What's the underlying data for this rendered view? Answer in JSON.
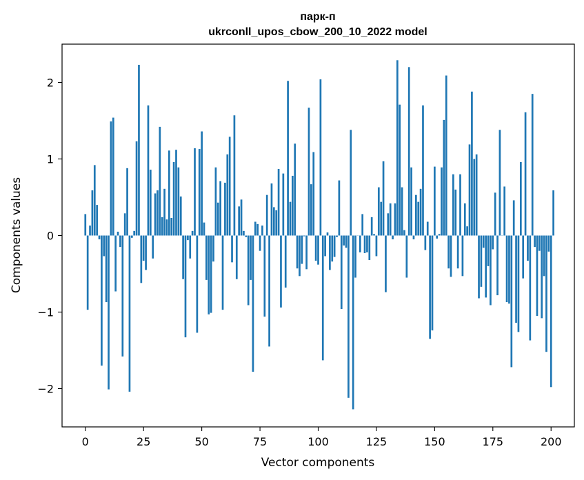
{
  "chart_data": {
    "type": "bar",
    "title": "парк-п",
    "subtitle": "ukrconll_upos_cbow_200_10_2022 model",
    "xlabel": "Vector components",
    "ylabel": "Components values",
    "xlim": [
      -10,
      210
    ],
    "ylim": [
      -2.5,
      2.5
    ],
    "xticks": [
      0,
      25,
      50,
      75,
      100,
      125,
      150,
      175,
      200
    ],
    "yticks": [
      -2,
      -1,
      0,
      1,
      2
    ],
    "ytick_labels": [
      "−2",
      "−1",
      "0",
      "1",
      "2"
    ],
    "grid": false,
    "bar_color": "#1f77b4",
    "values": [
      0.28,
      -0.97,
      0.13,
      0.59,
      0.92,
      0.4,
      -0.05,
      -1.7,
      -0.27,
      -0.87,
      -2.01,
      1.49,
      1.54,
      -0.73,
      0.05,
      -0.15,
      -1.58,
      0.29,
      0.88,
      -2.04,
      -0.03,
      0.06,
      1.23,
      2.23,
      -0.62,
      -0.33,
      -0.45,
      1.7,
      0.86,
      -0.3,
      0.55,
      0.59,
      1.42,
      0.24,
      0.61,
      0.21,
      1.11,
      0.23,
      0.96,
      1.12,
      0.89,
      0.51,
      -0.57,
      -1.33,
      -0.06,
      -0.3,
      0.06,
      1.14,
      -1.27,
      1.13,
      1.36,
      0.17,
      -0.58,
      -1.03,
      -1.01,
      -0.34,
      0.89,
      0.43,
      0.71,
      -0.97,
      0.69,
      1.06,
      1.29,
      -0.35,
      1.57,
      -0.57,
      0.38,
      0.47,
      0.06,
      -0.02,
      -0.91,
      -0.58,
      -1.78,
      0.18,
      0.15,
      -0.2,
      0.13,
      -1.06,
      0.53,
      -1.45,
      0.68,
      0.37,
      0.33,
      0.87,
      -0.94,
      0.81,
      -0.68,
      2.02,
      0.44,
      0.78,
      1.2,
      -0.43,
      -0.53,
      -0.37,
      -0.01,
      -0.44,
      1.67,
      0.67,
      1.09,
      -0.33,
      -0.38,
      2.04,
      -1.63,
      -0.27,
      0.04,
      -0.45,
      -0.34,
      -0.28,
      -0.02,
      0.72,
      -0.96,
      -0.13,
      -0.16,
      -2.12,
      1.38,
      -2.27,
      -0.55,
      0.0,
      -0.22,
      0.28,
      -0.23,
      -0.22,
      -0.32,
      0.24,
      0.02,
      -0.27,
      0.63,
      0.44,
      0.97,
      -0.74,
      0.29,
      0.42,
      -0.05,
      0.42,
      2.29,
      1.71,
      0.63,
      0.07,
      -0.55,
      2.2,
      0.89,
      -0.05,
      0.53,
      0.44,
      0.61,
      1.7,
      -0.19,
      0.18,
      -1.35,
      -1.24,
      0.9,
      -0.04,
      0.02,
      0.89,
      1.51,
      2.09,
      -0.43,
      -0.54,
      0.8,
      0.6,
      -0.43,
      0.8,
      -0.53,
      0.42,
      0.12,
      1.19,
      1.88,
      1.0,
      1.06,
      -0.82,
      -0.67,
      -0.16,
      -0.81,
      -0.4,
      -0.91,
      -0.18,
      0.56,
      -0.78,
      1.38,
      0.0,
      0.64,
      -0.87,
      -0.89,
      -1.72,
      0.46,
      -1.14,
      -1.26,
      0.96,
      -0.56,
      1.61,
      -0.33,
      -1.37,
      1.85,
      -0.15,
      -1.05,
      -0.2,
      -1.08,
      -0.53,
      -1.52,
      -0.21,
      -1.98,
      0.59
    ]
  }
}
